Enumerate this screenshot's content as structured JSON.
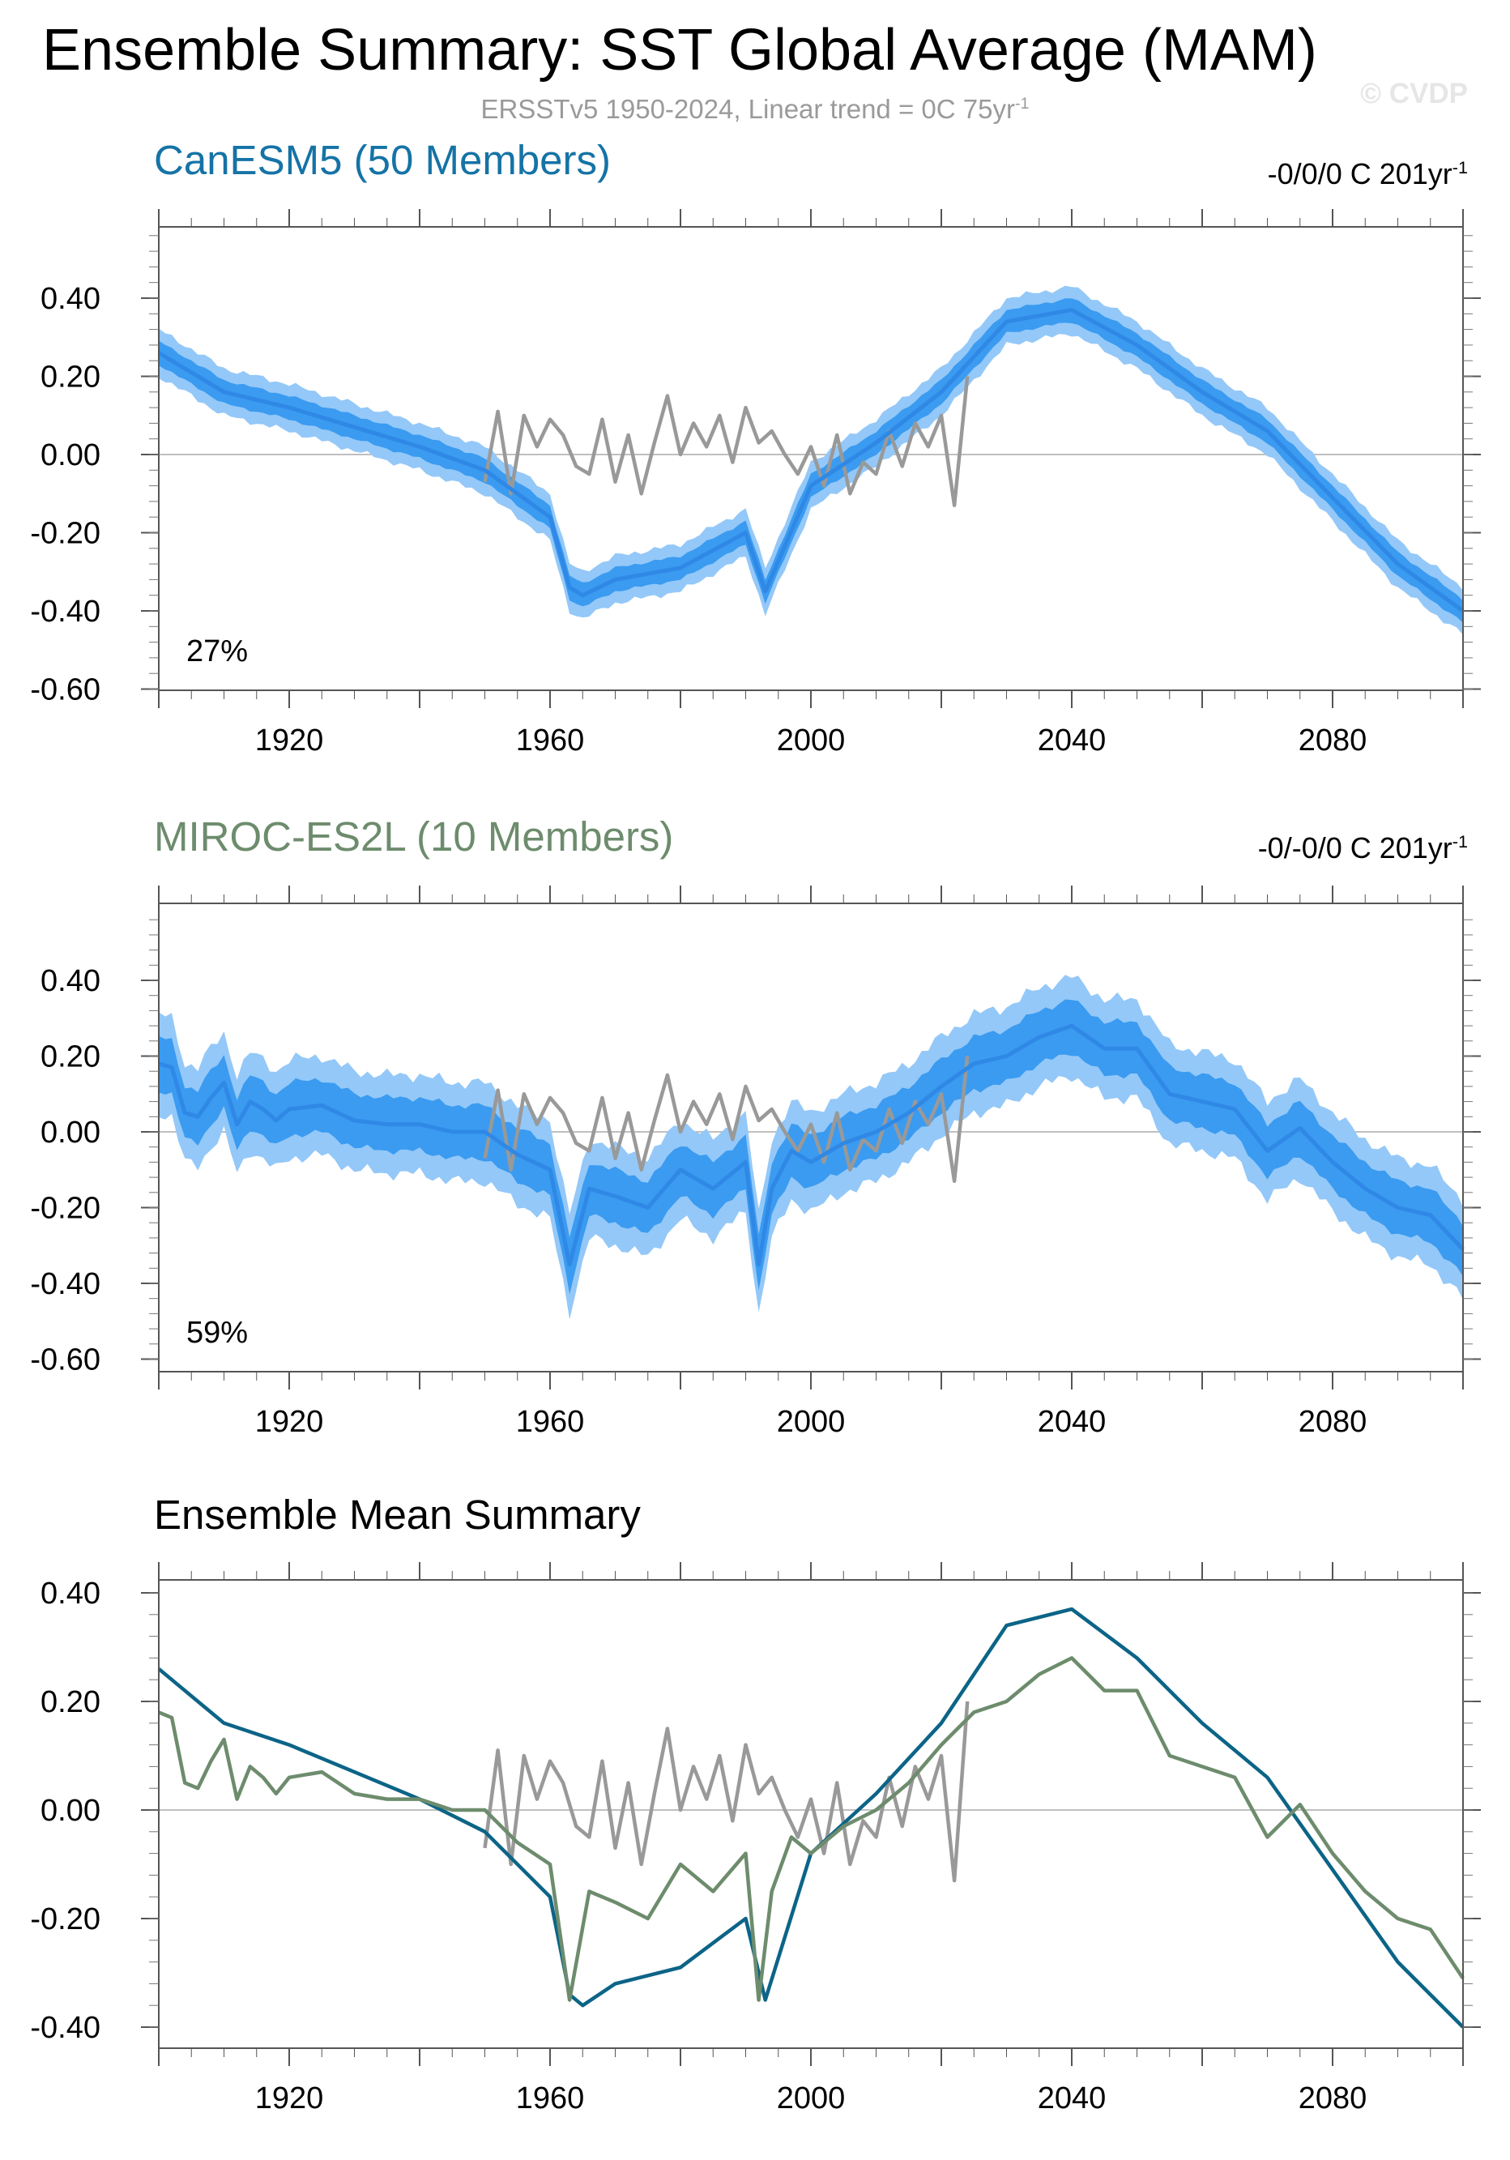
{
  "header": {
    "title": "Ensemble Summary: SST Global Average (MAM)",
    "subtitle": "ERSSTv5 1950-2024, Linear trend = 0C 75yr",
    "subtitle_sup": "-1",
    "watermark": "© CVDP"
  },
  "colors": {
    "band_outer": "#94c8f8",
    "band_inner": "#3a9bf0",
    "ens_mean": "#2f88e6",
    "obs": "#999999",
    "canesm5": "#0c6487",
    "miroc": "#6d8c6d"
  },
  "chart_data": [
    {
      "type": "area",
      "title": "CanESM5 (50 Members)",
      "trend_text": "-0/0/0 C 201yr",
      "trend_sup": "-1",
      "percent_label": "27%",
      "xlim": [
        1900,
        2100
      ],
      "ylim": [
        -0.6,
        0.58
      ],
      "x_ticks": [
        1920,
        1960,
        2000,
        2040,
        2080
      ],
      "y_ticks": [
        "0.40",
        "0.20",
        "0.00",
        "-0.20",
        "-0.40",
        "-0.60"
      ],
      "band_width": {
        "outer": 0.06,
        "inner": 0.03
      },
      "series": [
        {
          "role": "ensemble_mean",
          "x": [
            1900,
            1910,
            1920,
            1930,
            1940,
            1950,
            1960,
            1963,
            1965,
            1970,
            1980,
            1990,
            1993,
            2000,
            2010,
            2020,
            2030,
            2040,
            2050,
            2060,
            2070,
            2080,
            2090,
            2100
          ],
          "values": [
            0.26,
            0.16,
            0.12,
            0.07,
            0.02,
            -0.04,
            -0.16,
            -0.34,
            -0.36,
            -0.32,
            -0.29,
            -0.2,
            -0.35,
            -0.08,
            0.03,
            0.16,
            0.34,
            0.37,
            0.28,
            0.16,
            0.06,
            -0.11,
            -0.28,
            -0.4
          ]
        },
        {
          "role": "observations",
          "x": [
            1950,
            1952,
            1954,
            1956,
            1958,
            1960,
            1962,
            1964,
            1966,
            1968,
            1970,
            1972,
            1974,
            1976,
            1978,
            1980,
            1982,
            1984,
            1986,
            1988,
            1990,
            1992,
            1994,
            1996,
            1998,
            2000,
            2002,
            2004,
            2006,
            2008,
            2010,
            2012,
            2014,
            2016,
            2018,
            2020,
            2022,
            2024
          ],
          "values": [
            -0.07,
            0.11,
            -0.1,
            0.1,
            0.02,
            0.09,
            0.05,
            -0.03,
            -0.05,
            0.09,
            -0.07,
            0.05,
            -0.1,
            0.03,
            0.15,
            0.0,
            0.08,
            0.02,
            0.1,
            -0.02,
            0.12,
            0.03,
            0.06,
            0.0,
            -0.05,
            0.02,
            -0.08,
            0.05,
            -0.1,
            -0.02,
            -0.05,
            0.06,
            -0.03,
            0.08,
            0.02,
            0.1,
            -0.13,
            0.2
          ]
        }
      ]
    },
    {
      "type": "area",
      "title": "MIROC-ES2L (10 Members)",
      "trend_text": "-0/-0/0 C 201yr",
      "trend_sup": "-1",
      "percent_label": "59%",
      "xlim": [
        1900,
        2100
      ],
      "ylim": [
        -0.6,
        0.58
      ],
      "x_ticks": [
        1920,
        1960,
        2000,
        2040,
        2080
      ],
      "y_ticks": [
        "0.40",
        "0.20",
        "0.00",
        "-0.20",
        "-0.40",
        "-0.60"
      ],
      "band_width": {
        "outer": 0.13,
        "inner": 0.07
      },
      "series": [
        {
          "role": "ensemble_mean",
          "x": [
            1900,
            1902,
            1904,
            1906,
            1908,
            1910,
            1912,
            1914,
            1916,
            1918,
            1920,
            1925,
            1930,
            1935,
            1940,
            1945,
            1950,
            1955,
            1960,
            1963,
            1966,
            1970,
            1975,
            1980,
            1985,
            1990,
            1992,
            1994,
            1997,
            2000,
            2005,
            2010,
            2015,
            2020,
            2025,
            2030,
            2035,
            2040,
            2045,
            2050,
            2055,
            2060,
            2065,
            2070,
            2075,
            2080,
            2085,
            2090,
            2095,
            2100
          ],
          "values": [
            0.18,
            0.17,
            0.05,
            0.04,
            0.09,
            0.13,
            0.02,
            0.08,
            0.06,
            0.03,
            0.06,
            0.07,
            0.03,
            0.02,
            0.02,
            0.0,
            0.0,
            -0.06,
            -0.1,
            -0.35,
            -0.15,
            -0.17,
            -0.2,
            -0.1,
            -0.15,
            -0.08,
            -0.35,
            -0.15,
            -0.05,
            -0.08,
            -0.03,
            0.0,
            0.05,
            0.12,
            0.18,
            0.2,
            0.25,
            0.28,
            0.22,
            0.22,
            0.1,
            0.08,
            0.06,
            -0.05,
            0.01,
            -0.08,
            -0.15,
            -0.2,
            -0.22,
            -0.31
          ]
        },
        {
          "role": "observations",
          "x": [
            1950,
            1952,
            1954,
            1956,
            1958,
            1960,
            1962,
            1964,
            1966,
            1968,
            1970,
            1972,
            1974,
            1976,
            1978,
            1980,
            1982,
            1984,
            1986,
            1988,
            1990,
            1992,
            1994,
            1996,
            1998,
            2000,
            2002,
            2004,
            2006,
            2008,
            2010,
            2012,
            2014,
            2016,
            2018,
            2020,
            2022,
            2024
          ],
          "values": [
            -0.07,
            0.11,
            -0.1,
            0.1,
            0.02,
            0.09,
            0.05,
            -0.03,
            -0.05,
            0.09,
            -0.07,
            0.05,
            -0.1,
            0.03,
            0.15,
            0.0,
            0.08,
            0.02,
            0.1,
            -0.02,
            0.12,
            0.03,
            0.06,
            0.0,
            -0.05,
            0.02,
            -0.08,
            0.05,
            -0.1,
            -0.02,
            -0.05,
            0.06,
            -0.03,
            0.08,
            0.02,
            0.1,
            -0.13,
            0.2
          ]
        }
      ]
    },
    {
      "type": "line",
      "title": "Ensemble Mean Summary",
      "xlim": [
        1900,
        2100
      ],
      "ylim": [
        -0.42,
        0.42
      ],
      "x_ticks": [
        1920,
        1960,
        2000,
        2040,
        2080
      ],
      "y_ticks": [
        "0.40",
        "0.20",
        "0.00",
        "-0.20",
        "-0.40"
      ],
      "series": [
        {
          "role": "observations",
          "x": [
            1950,
            1952,
            1954,
            1956,
            1958,
            1960,
            1962,
            1964,
            1966,
            1968,
            1970,
            1972,
            1974,
            1976,
            1978,
            1980,
            1982,
            1984,
            1986,
            1988,
            1990,
            1992,
            1994,
            1996,
            1998,
            2000,
            2002,
            2004,
            2006,
            2008,
            2010,
            2012,
            2014,
            2016,
            2018,
            2020,
            2022,
            2024
          ],
          "values": [
            -0.07,
            0.11,
            -0.1,
            0.1,
            0.02,
            0.09,
            0.05,
            -0.03,
            -0.05,
            0.09,
            -0.07,
            0.05,
            -0.1,
            0.03,
            0.15,
            0.0,
            0.08,
            0.02,
            0.1,
            -0.02,
            0.12,
            0.03,
            0.06,
            0.0,
            -0.05,
            0.02,
            -0.08,
            0.05,
            -0.1,
            -0.02,
            -0.05,
            0.06,
            -0.03,
            0.08,
            0.02,
            0.1,
            -0.13,
            0.2
          ]
        },
        {
          "role": "canesm5_mean",
          "x": [
            1900,
            1910,
            1920,
            1930,
            1940,
            1950,
            1960,
            1963,
            1965,
            1970,
            1980,
            1990,
            1993,
            2000,
            2010,
            2020,
            2030,
            2040,
            2050,
            2060,
            2070,
            2080,
            2090,
            2100
          ],
          "values": [
            0.26,
            0.16,
            0.12,
            0.07,
            0.02,
            -0.04,
            -0.16,
            -0.34,
            -0.36,
            -0.32,
            -0.29,
            -0.2,
            -0.35,
            -0.08,
            0.03,
            0.16,
            0.34,
            0.37,
            0.28,
            0.16,
            0.06,
            -0.11,
            -0.28,
            -0.4
          ]
        },
        {
          "role": "miroc_mean",
          "x": [
            1900,
            1902,
            1904,
            1906,
            1908,
            1910,
            1912,
            1914,
            1916,
            1918,
            1920,
            1925,
            1930,
            1935,
            1940,
            1945,
            1950,
            1955,
            1960,
            1963,
            1966,
            1970,
            1975,
            1980,
            1985,
            1990,
            1992,
            1994,
            1997,
            2000,
            2005,
            2010,
            2015,
            2020,
            2025,
            2030,
            2035,
            2040,
            2045,
            2050,
            2055,
            2060,
            2065,
            2070,
            2075,
            2080,
            2085,
            2090,
            2095,
            2100
          ],
          "values": [
            0.18,
            0.17,
            0.05,
            0.04,
            0.09,
            0.13,
            0.02,
            0.08,
            0.06,
            0.03,
            0.06,
            0.07,
            0.03,
            0.02,
            0.02,
            0.0,
            0.0,
            -0.06,
            -0.1,
            -0.35,
            -0.15,
            -0.17,
            -0.2,
            -0.1,
            -0.15,
            -0.08,
            -0.35,
            -0.15,
            -0.05,
            -0.08,
            -0.03,
            0.0,
            0.05,
            0.12,
            0.18,
            0.2,
            0.25,
            0.28,
            0.22,
            0.22,
            0.1,
            0.08,
            0.06,
            -0.05,
            0.01,
            -0.08,
            -0.15,
            -0.2,
            -0.22,
            -0.31
          ]
        }
      ]
    }
  ]
}
